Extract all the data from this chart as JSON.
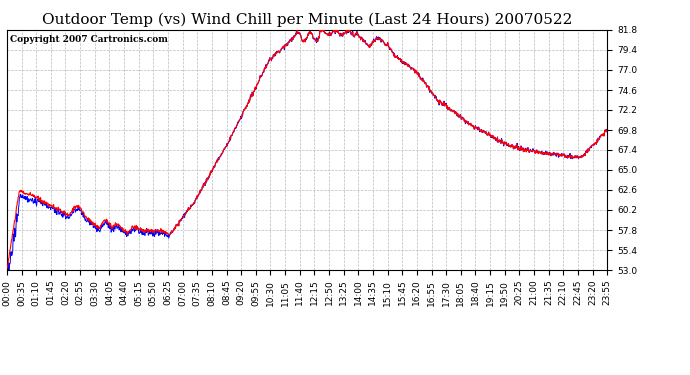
{
  "title": "Outdoor Temp (vs) Wind Chill per Minute (Last 24 Hours) 20070522",
  "copyright_text": "Copyright 2007 Cartronics.com",
  "background_color": "#ffffff",
  "plot_bg_color": "#ffffff",
  "grid_color": "#bbbbbb",
  "line_color_temp": "#ff0000",
  "line_color_wind": "#0000ff",
  "ylim": [
    53.0,
    81.8
  ],
  "yticks": [
    53.0,
    55.4,
    57.8,
    60.2,
    62.6,
    65.0,
    67.4,
    69.8,
    72.2,
    74.6,
    77.0,
    79.4,
    81.8
  ],
  "xtick_labels": [
    "00:00",
    "00:35",
    "01:10",
    "01:45",
    "02:20",
    "02:55",
    "03:30",
    "04:05",
    "04:40",
    "05:15",
    "05:50",
    "06:25",
    "07:00",
    "07:35",
    "08:10",
    "08:45",
    "09:20",
    "09:55",
    "10:30",
    "11:05",
    "11:40",
    "12:15",
    "12:50",
    "13:25",
    "14:00",
    "14:35",
    "15:10",
    "15:45",
    "16:20",
    "16:55",
    "17:30",
    "18:05",
    "18:40",
    "19:15",
    "19:50",
    "20:25",
    "21:00",
    "21:35",
    "22:10",
    "22:45",
    "23:20",
    "23:55"
  ],
  "title_fontsize": 11,
  "tick_fontsize": 6.5,
  "copyright_fontsize": 6.5
}
